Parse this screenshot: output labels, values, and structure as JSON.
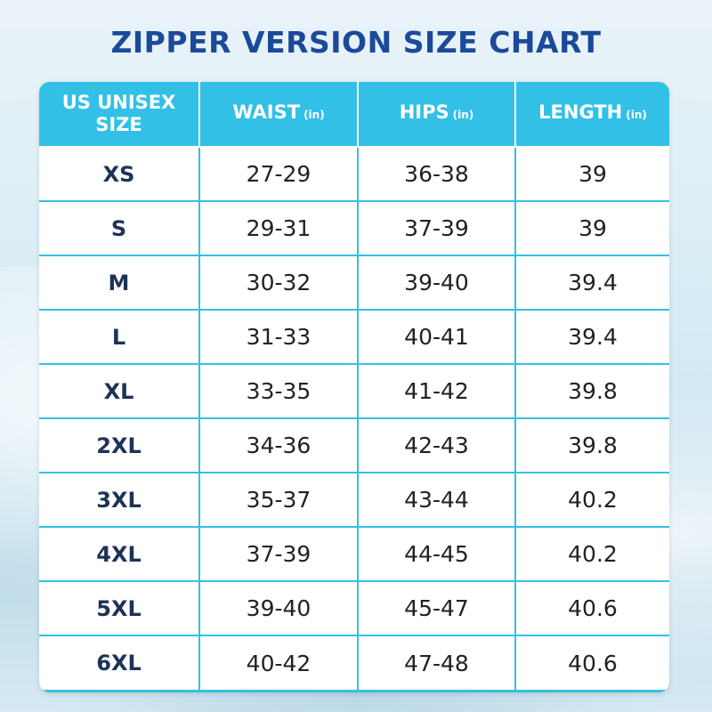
{
  "title": "ZIPPER VERSION SIZE CHART",
  "headers": [
    {
      "label": "US UNISEX SIZE",
      "unit": ""
    },
    {
      "label": "WAIST",
      "unit": "(in)"
    },
    {
      "label": "HIPS",
      "unit": "(in)"
    },
    {
      "label": "LENGTH",
      "unit": "(in)"
    }
  ],
  "rows": [
    [
      "XS",
      "27-29",
      "36-38",
      "39"
    ],
    [
      "S",
      "29-31",
      "37-39",
      "39"
    ],
    [
      "M",
      "30-32",
      "39-40",
      "39.4"
    ],
    [
      "L",
      "31-33",
      "40-41",
      "39.4"
    ],
    [
      "XL",
      "33-35",
      "41-42",
      "39.8"
    ],
    [
      "2XL",
      "34-36",
      "42-43",
      "39.8"
    ],
    [
      "3XL",
      "35-37",
      "43-44",
      "40.2"
    ],
    [
      "4XL",
      "37-39",
      "44-45",
      "40.2"
    ],
    [
      "5XL",
      "39-40",
      "45-47",
      "40.6"
    ],
    [
      "6XL",
      "40-42",
      "47-48",
      "40.6"
    ]
  ],
  "colors": {
    "header_bg": "#33c0e6",
    "title": "#1b4a9a",
    "size_text": "#1d3356"
  }
}
